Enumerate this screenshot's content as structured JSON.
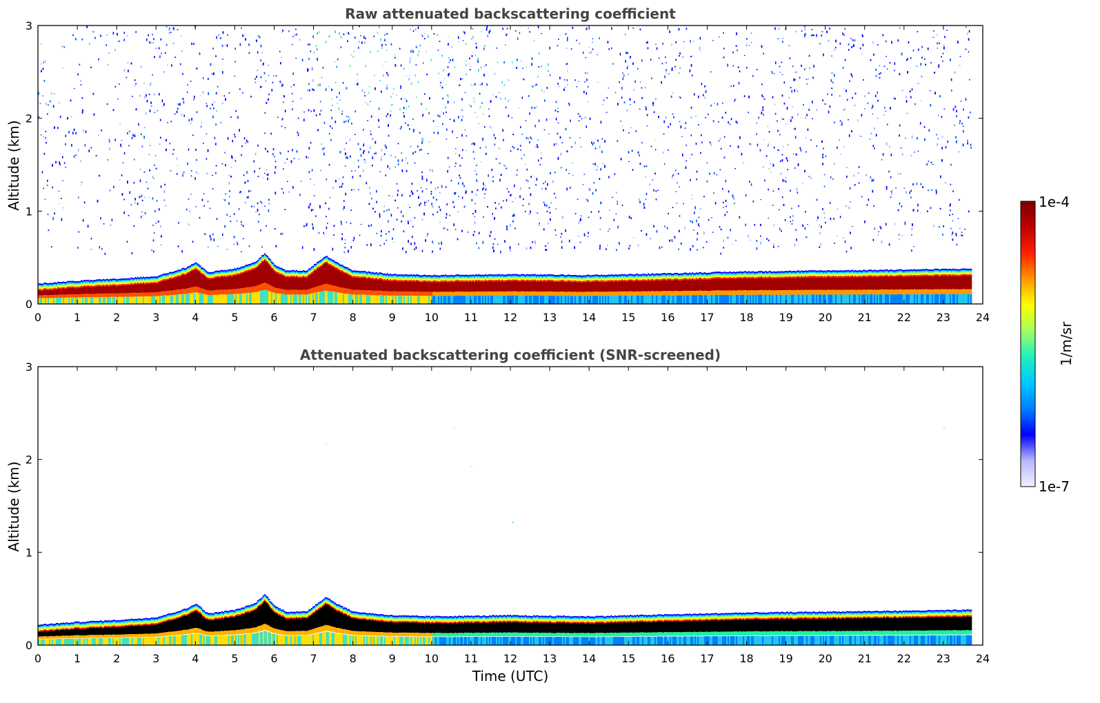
{
  "colors": {
    "colormap": [
      "#f0f0ff",
      "#b7b7ff",
      "#0000ff",
      "#0080ff",
      "#00c8ff",
      "#20f0c0",
      "#a0ff60",
      "#ffff00",
      "#ff9800",
      "#ff2000",
      "#c00000",
      "#780000"
    ],
    "screened_core": "#000000",
    "frame": "#000000"
  },
  "chart_data": [
    {
      "type": "heatmap",
      "title": "Raw attenuated backscattering coefficient",
      "xlabel": "",
      "ylabel": "Altitude (km)",
      "xlim": [
        0,
        24
      ],
      "ylim": [
        0,
        3
      ],
      "xticks": [
        "0",
        "1",
        "2",
        "3",
        "4",
        "5",
        "6",
        "7",
        "8",
        "9",
        "10",
        "11",
        "12",
        "13",
        "14",
        "15",
        "16",
        "17",
        "18",
        "19",
        "20",
        "21",
        "22",
        "23",
        "24"
      ],
      "yticks": [
        "0",
        "1",
        "2",
        "3"
      ],
      "data_end_time": 23.7,
      "boundary_layer_top_km": {
        "time": [
          0,
          1,
          2,
          3,
          3.5,
          3.8,
          4.0,
          4.3,
          5,
          5.5,
          5.75,
          6.0,
          6.3,
          6.8,
          7.3,
          7.6,
          8,
          9,
          10,
          12,
          14,
          16,
          18,
          20,
          22,
          23.7
        ],
        "value": [
          0.22,
          0.25,
          0.27,
          0.3,
          0.36,
          0.4,
          0.45,
          0.34,
          0.38,
          0.45,
          0.55,
          0.42,
          0.36,
          0.36,
          0.52,
          0.44,
          0.36,
          0.32,
          0.31,
          0.32,
          0.31,
          0.33,
          0.35,
          0.36,
          0.37,
          0.38
        ]
      },
      "high_altitude_noise": "sparse noisy signal ~1e-6 to 1e-5 1/m/sr between 0.5 and 3 km, densest 7-13 UTC"
    },
    {
      "type": "heatmap",
      "title": "Attenuated backscattering coefficient (SNR-screened)",
      "xlabel": "Time (UTC)",
      "ylabel": "Altitude (km)",
      "xlim": [
        0,
        24
      ],
      "ylim": [
        0,
        3
      ],
      "xticks": [
        "0",
        "1",
        "2",
        "3",
        "4",
        "5",
        "6",
        "7",
        "8",
        "9",
        "10",
        "11",
        "12",
        "13",
        "14",
        "15",
        "16",
        "17",
        "18",
        "19",
        "20",
        "21",
        "22",
        "23",
        "24"
      ],
      "yticks": [
        "0",
        "1",
        "2",
        "3"
      ],
      "data_end_time": 23.7,
      "boundary_layer_top_km": {
        "time": [
          0,
          1,
          2,
          3,
          3.5,
          3.8,
          4.0,
          4.3,
          5,
          5.5,
          5.75,
          6.0,
          6.3,
          6.8,
          7.3,
          7.6,
          8,
          9,
          10,
          12,
          14,
          16,
          18,
          20,
          22,
          23.7
        ],
        "value": [
          0.22,
          0.25,
          0.27,
          0.3,
          0.36,
          0.4,
          0.45,
          0.34,
          0.38,
          0.45,
          0.55,
          0.42,
          0.36,
          0.36,
          0.52,
          0.44,
          0.36,
          0.32,
          0.31,
          0.32,
          0.31,
          0.33,
          0.35,
          0.36,
          0.37,
          0.38
        ]
      },
      "high_altitude_noise": "removed by SNR screening"
    }
  ],
  "colorbar": {
    "label": "1/m/sr",
    "max_label": "1e-4",
    "min_label": "1e-7",
    "scale": "log",
    "range": [
      1e-07,
      0.0001
    ]
  }
}
